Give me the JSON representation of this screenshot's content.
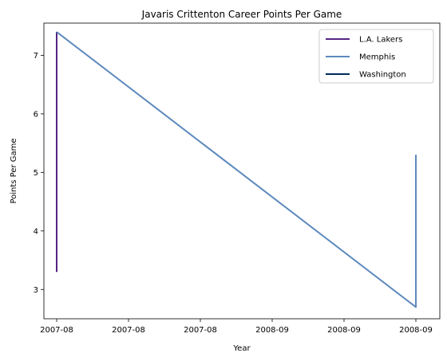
{
  "chart_data": {
    "type": "line",
    "title": "Javaris Crittenton Career Points Per Game",
    "xlabel": "Year",
    "ylabel": "Points Per Game",
    "x_tick_labels": [
      "2007-08",
      "2007-08",
      "2007-08",
      "2008-09",
      "2008-09",
      "2008-09"
    ],
    "ylim": [
      2.5,
      7.55
    ],
    "y_ticks": [
      3,
      4,
      5,
      6,
      7
    ],
    "grid": false,
    "legend_position": "top-right",
    "series": [
      {
        "name": "L.A. Lakers",
        "color": "#552583",
        "points": [
          {
            "x": "2007-08",
            "y": 3.3
          },
          {
            "x": "2007-08",
            "y": 7.4
          }
        ]
      },
      {
        "name": "Memphis",
        "color": "#5D89BD",
        "points": [
          {
            "x": "2007-08",
            "y": 7.4
          },
          {
            "x": "2008-09",
            "y": 2.7
          },
          {
            "x": "2008-09",
            "y": 5.3
          }
        ]
      },
      {
        "name": "Washington",
        "color": "#002B5C",
        "points": []
      }
    ]
  }
}
